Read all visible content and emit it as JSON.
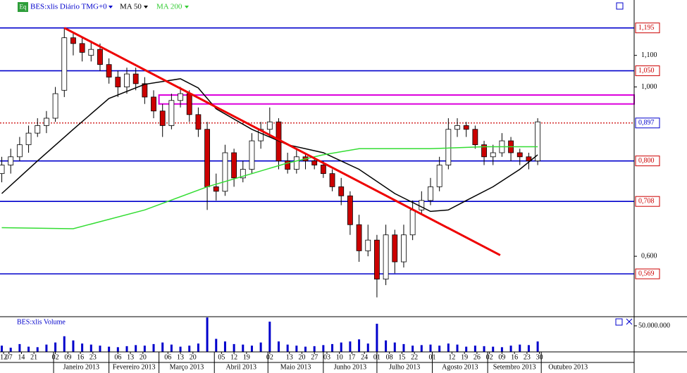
{
  "chart_data": {
    "type": "candlestick",
    "title": "BES:xlis Diário TMG+0",
    "icon_label": "Eq",
    "log_scale": true,
    "xlim": [
      "2012-12-02",
      "2013-11-22"
    ],
    "ylim": [
      0.5,
      1.3
    ],
    "yticks": [
      {
        "value": 1.1,
        "label": "1,100"
      },
      {
        "value": 1.0,
        "label": "1,000"
      },
      {
        "value": 0.6,
        "label": "0,600"
      }
    ],
    "up_color": "#ffffff",
    "down_color": "#cc0000",
    "x": [
      "2012-12-03",
      "2012-12-08",
      "2012-12-13",
      "2012-12-18",
      "2012-12-23",
      "2012-12-28",
      "2013-01-02",
      "2013-01-07",
      "2013-01-12",
      "2013-01-17",
      "2013-01-22",
      "2013-01-27",
      "2013-02-01",
      "2013-02-06",
      "2013-02-11",
      "2013-02-16",
      "2013-02-21",
      "2013-02-26",
      "2013-03-03",
      "2013-03-08",
      "2013-03-13",
      "2013-03-18",
      "2013-03-23",
      "2013-03-28",
      "2013-04-02",
      "2013-04-07",
      "2013-04-12",
      "2013-04-17",
      "2013-04-22",
      "2013-04-27",
      "2013-05-02",
      "2013-05-07",
      "2013-05-12",
      "2013-05-17",
      "2013-05-22",
      "2013-05-27",
      "2013-06-01",
      "2013-06-06",
      "2013-06-11",
      "2013-06-16",
      "2013-06-21",
      "2013-06-26",
      "2013-07-01",
      "2013-07-06",
      "2013-07-11",
      "2013-07-16",
      "2013-07-21",
      "2013-07-26",
      "2013-07-31",
      "2013-08-05",
      "2013-08-10",
      "2013-08-15",
      "2013-08-20",
      "2013-08-25",
      "2013-08-30",
      "2013-09-04",
      "2013-09-09",
      "2013-09-14",
      "2013-09-19",
      "2013-09-24",
      "2013-09-29"
    ],
    "open": [
      0.77,
      0.79,
      0.81,
      0.84,
      0.87,
      0.89,
      0.91,
      0.99,
      1.16,
      1.14,
      1.1,
      1.12,
      1.07,
      1.03,
      1.0,
      1.04,
      1.01,
      0.97,
      0.93,
      0.89,
      0.96,
      0.98,
      0.92,
      0.88,
      0.74,
      0.73,
      0.82,
      0.76,
      0.78,
      0.85,
      0.88,
      0.9,
      0.8,
      0.78,
      0.81,
      0.8,
      0.79,
      0.77,
      0.74,
      0.72,
      0.66,
      0.61,
      0.63,
      0.56,
      0.64,
      0.59,
      0.64,
      0.69,
      0.71,
      0.74,
      0.79,
      0.88,
      0.89,
      0.88,
      0.84,
      0.81,
      0.82,
      0.85,
      0.82,
      0.81,
      0.8
    ],
    "high": [
      0.81,
      0.83,
      0.86,
      0.89,
      0.91,
      0.93,
      1.0,
      1.195,
      1.18,
      1.16,
      1.15,
      1.14,
      1.09,
      1.05,
      1.06,
      1.06,
      1.03,
      0.99,
      0.95,
      0.98,
      1.0,
      0.99,
      0.94,
      0.9,
      0.77,
      0.84,
      0.83,
      0.8,
      0.87,
      0.9,
      0.94,
      0.91,
      0.82,
      0.83,
      0.82,
      0.81,
      0.8,
      0.78,
      0.76,
      0.73,
      0.68,
      0.66,
      0.64,
      0.66,
      0.65,
      0.66,
      0.71,
      0.73,
      0.76,
      0.81,
      0.91,
      0.91,
      0.9,
      0.89,
      0.85,
      0.84,
      0.87,
      0.86,
      0.83,
      0.82,
      0.91
    ],
    "low": [
      0.75,
      0.77,
      0.8,
      0.82,
      0.86,
      0.87,
      0.9,
      0.97,
      1.1,
      1.08,
      1.08,
      1.05,
      1.01,
      0.97,
      0.98,
      0.99,
      0.95,
      0.91,
      0.86,
      0.88,
      0.94,
      0.9,
      0.86,
      0.69,
      0.71,
      0.72,
      0.74,
      0.75,
      0.77,
      0.83,
      0.86,
      0.78,
      0.77,
      0.77,
      0.78,
      0.78,
      0.76,
      0.73,
      0.7,
      0.64,
      0.59,
      0.6,
      0.53,
      0.55,
      0.57,
      0.58,
      0.63,
      0.68,
      0.7,
      0.73,
      0.78,
      0.86,
      0.86,
      0.83,
      0.79,
      0.79,
      0.81,
      0.8,
      0.79,
      0.78,
      0.79
    ],
    "close": [
      0.79,
      0.81,
      0.84,
      0.87,
      0.89,
      0.91,
      0.98,
      1.16,
      1.14,
      1.11,
      1.12,
      1.07,
      1.03,
      1.0,
      1.04,
      1.01,
      0.97,
      0.93,
      0.89,
      0.96,
      0.98,
      0.92,
      0.88,
      0.74,
      0.73,
      0.82,
      0.76,
      0.78,
      0.85,
      0.88,
      0.9,
      0.8,
      0.78,
      0.81,
      0.8,
      0.79,
      0.77,
      0.74,
      0.72,
      0.66,
      0.61,
      0.63,
      0.56,
      0.64,
      0.59,
      0.64,
      0.69,
      0.71,
      0.74,
      0.79,
      0.88,
      0.89,
      0.88,
      0.84,
      0.81,
      0.82,
      0.85,
      0.82,
      0.81,
      0.8,
      0.9
    ],
    "series": [
      {
        "name": "MA 50",
        "color": "#000000",
        "x": [
          "2012-12-03",
          "2012-12-23",
          "2013-01-12",
          "2013-02-01",
          "2013-02-21",
          "2013-03-13",
          "2013-03-23",
          "2013-04-02",
          "2013-04-22",
          "2013-05-12",
          "2013-06-01",
          "2013-06-21",
          "2013-07-11",
          "2013-07-31",
          "2013-08-10",
          "2013-08-20",
          "2013-09-04",
          "2013-09-19",
          "2013-09-29"
        ],
        "values": [
          0.725,
          0.8,
          0.88,
          0.966,
          1.008,
          1.025,
          0.997,
          0.936,
          0.88,
          0.84,
          0.82,
          0.78,
          0.725,
          0.687,
          0.69,
          0.71,
          0.74,
          0.78,
          0.815
        ]
      },
      {
        "name": "MA 200",
        "color": "#33dd33",
        "x": [
          "2012-12-03",
          "2013-01-12",
          "2013-02-21",
          "2013-03-28",
          "2013-04-22",
          "2013-05-12",
          "2013-06-01",
          "2013-06-21",
          "2013-07-31",
          "2013-08-30",
          "2013-09-29"
        ],
        "values": [
          0.654,
          0.652,
          0.69,
          0.74,
          0.77,
          0.795,
          0.815,
          0.83,
          0.83,
          0.835,
          0.835
        ]
      }
    ],
    "levels": [
      {
        "value": 1.195,
        "label": "1,195",
        "color": "#0000cc",
        "label_color": "#cc0000"
      },
      {
        "value": 1.05,
        "label": "1,050",
        "color": "#0000cc",
        "label_color": "#cc0000"
      },
      {
        "value": 0.897,
        "label": "0,897",
        "color": "#cc0000",
        "label_color": "#0000cc",
        "style": "dotted"
      },
      {
        "value": 0.8,
        "label": "0,800",
        "color": "#0000cc",
        "label_color": "#cc0000"
      },
      {
        "value": 0.708,
        "label": "0,708",
        "color": "#0000cc",
        "label_color": "#cc0000"
      },
      {
        "value": 0.569,
        "label": "0,569",
        "color": "#0000cc",
        "label_color": "#cc0000"
      }
    ],
    "zone": {
      "start": "2013-03-01",
      "ylim": [
        0.95,
        0.976
      ],
      "color": "#dd00dd"
    },
    "trendline": {
      "x": [
        "2013-01-07",
        "2013-09-08"
      ],
      "values": [
        1.195,
        0.602
      ],
      "color": "#ee0000"
    },
    "xticks": [
      {
        "value": "2012-12-04",
        "label": "12"
      },
      {
        "value": "2012-12-07",
        "label": "07"
      },
      {
        "value": "2012-12-14",
        "label": "14"
      },
      {
        "value": "2012-12-21",
        "label": "21"
      },
      {
        "value": "2013-01-02",
        "label": "02"
      },
      {
        "value": "2013-01-09",
        "label": "09"
      },
      {
        "value": "2013-01-16",
        "label": "16"
      },
      {
        "value": "2013-01-23",
        "label": "23"
      },
      {
        "value": "2013-02-06",
        "label": "06"
      },
      {
        "value": "2013-02-13",
        "label": "13"
      },
      {
        "value": "2013-02-20",
        "label": "20"
      },
      {
        "value": "2013-03-06",
        "label": "06"
      },
      {
        "value": "2013-03-13",
        "label": "13"
      },
      {
        "value": "2013-03-20",
        "label": "20"
      },
      {
        "value": "2013-04-05",
        "label": "05"
      },
      {
        "value": "2013-04-12",
        "label": "12"
      },
      {
        "value": "2013-04-19",
        "label": "19"
      },
      {
        "value": "2013-05-02",
        "label": "02"
      },
      {
        "value": "2013-05-13",
        "label": "13"
      },
      {
        "value": "2013-05-20",
        "label": "20"
      },
      {
        "value": "2013-05-27",
        "label": "27"
      },
      {
        "value": "2013-06-03",
        "label": "03"
      },
      {
        "value": "2013-06-10",
        "label": "10"
      },
      {
        "value": "2013-06-17",
        "label": "17"
      },
      {
        "value": "2013-06-24",
        "label": "24"
      },
      {
        "value": "2013-07-01",
        "label": "01"
      },
      {
        "value": "2013-07-08",
        "label": "08"
      },
      {
        "value": "2013-07-15",
        "label": "15"
      },
      {
        "value": "2013-07-22",
        "label": "22"
      },
      {
        "value": "2013-08-01",
        "label": "01"
      },
      {
        "value": "2013-08-12",
        "label": "12"
      },
      {
        "value": "2013-08-19",
        "label": "19"
      },
      {
        "value": "2013-08-26",
        "label": "26"
      },
      {
        "value": "2013-09-02",
        "label": "02"
      },
      {
        "value": "2013-09-09",
        "label": "09"
      },
      {
        "value": "2013-09-16",
        "label": "16"
      },
      {
        "value": "2013-09-23",
        "label": "23"
      },
      {
        "value": "2013-09-30",
        "label": "30"
      }
    ],
    "month_ticks": [
      {
        "value": "2013-01-01",
        "label": "Janeiro 2013"
      },
      {
        "value": "2013-02-01",
        "label": "Fevereiro 2013"
      },
      {
        "value": "2013-03-01",
        "label": "Março 2013"
      },
      {
        "value": "2013-04-01",
        "label": "Abril 2013"
      },
      {
        "value": "2013-05-01",
        "label": "Maio 2013"
      },
      {
        "value": "2013-06-01",
        "label": "Junho 2013"
      },
      {
        "value": "2013-07-01",
        "label": "Julho 2013"
      },
      {
        "value": "2013-08-01",
        "label": "Agosto 2013"
      },
      {
        "value": "2013-09-01",
        "label": "Setembro 2013"
      },
      {
        "value": "2013-10-01",
        "label": "Outubro 2013"
      }
    ],
    "volume": {
      "title": "BES:xlis Volume",
      "color": "#0000cc",
      "ylim": [
        0,
        67500000
      ],
      "yticks": [
        {
          "value": 50000000,
          "label": "50.000.000"
        }
      ],
      "values": [
        12000000,
        8000000,
        15000000,
        10000000,
        9000000,
        14000000,
        18000000,
        30000000,
        22000000,
        16000000,
        14000000,
        12000000,
        10000000,
        9000000,
        11000000,
        13000000,
        12000000,
        15000000,
        18000000,
        14000000,
        10000000,
        12000000,
        16000000,
        66000000,
        25000000,
        20000000,
        15000000,
        14000000,
        12000000,
        18000000,
        58000000,
        20000000,
        14000000,
        12000000,
        10000000,
        11000000,
        13000000,
        15000000,
        18000000,
        20000000,
        24000000,
        16000000,
        54000000,
        22000000,
        18000000,
        15000000,
        12000000,
        13000000,
        14000000,
        12000000,
        16000000,
        14000000,
        10000000,
        12000000,
        11000000,
        10000000,
        9000000,
        12000000,
        14000000,
        13000000,
        20000000
      ]
    }
  }
}
